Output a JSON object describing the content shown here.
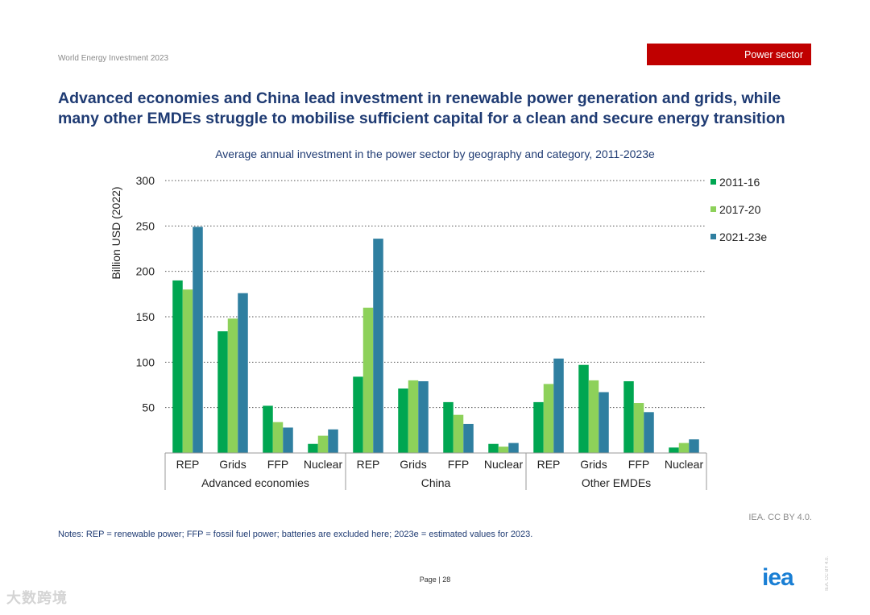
{
  "header": {
    "doc_label": "World Energy Investment 2023",
    "section_badge": "Power sector",
    "headline": "Advanced economies and China lead investment in renewable power generation and grids, while many other EMDEs struggle to mobilise sufficient capital for a clean and secure energy transition"
  },
  "colors": {
    "accent_red": "#c00000",
    "title_blue": "#1f3b73"
  },
  "chart_data": {
    "type": "bar",
    "title": "Average annual investment in the power sector by geography and category, 2011-2023e",
    "ylabel": "Billion USD (2022)",
    "xlabel": "",
    "ylim": [
      0,
      300
    ],
    "yticks": [
      50,
      100,
      150,
      200,
      250,
      300
    ],
    "grid": true,
    "legend_position": "top-right",
    "groups": [
      {
        "name": "Advanced economies",
        "categories": [
          "REP",
          "Grids",
          "FFP",
          "Nuclear"
        ]
      },
      {
        "name": "China",
        "categories": [
          "REP",
          "Grids",
          "FFP",
          "Nuclear"
        ]
      },
      {
        "name": "Other EMDEs",
        "categories": [
          "REP",
          "Grids",
          "FFP",
          "Nuclear"
        ]
      }
    ],
    "series": [
      {
        "name": "2011-16",
        "color": "#00a651",
        "values": [
          190,
          134,
          52,
          10,
          84,
          71,
          56,
          10,
          56,
          97,
          79,
          6
        ]
      },
      {
        "name": "2017-20",
        "color": "#8dd15a",
        "values": [
          180,
          148,
          34,
          19,
          160,
          80,
          42,
          7,
          76,
          80,
          55,
          11
        ]
      },
      {
        "name": "2021-23e",
        "color": "#2f7fa0",
        "values": [
          249,
          176,
          28,
          26,
          236,
          79,
          32,
          11,
          104,
          67,
          45,
          15
        ]
      }
    ]
  },
  "footer": {
    "credit": "IEA. CC BY 4.0.",
    "notes": "Notes: REP = renewable power; FFP = fossil fuel power; batteries are excluded here; 2023e = estimated values for 2023.",
    "page_label": "Page",
    "page_sep": "|",
    "page_number": "28",
    "logo_text": "iea",
    "license_vertical": "IEA. CC BY 4.0.",
    "watermark": "大数跨境"
  }
}
